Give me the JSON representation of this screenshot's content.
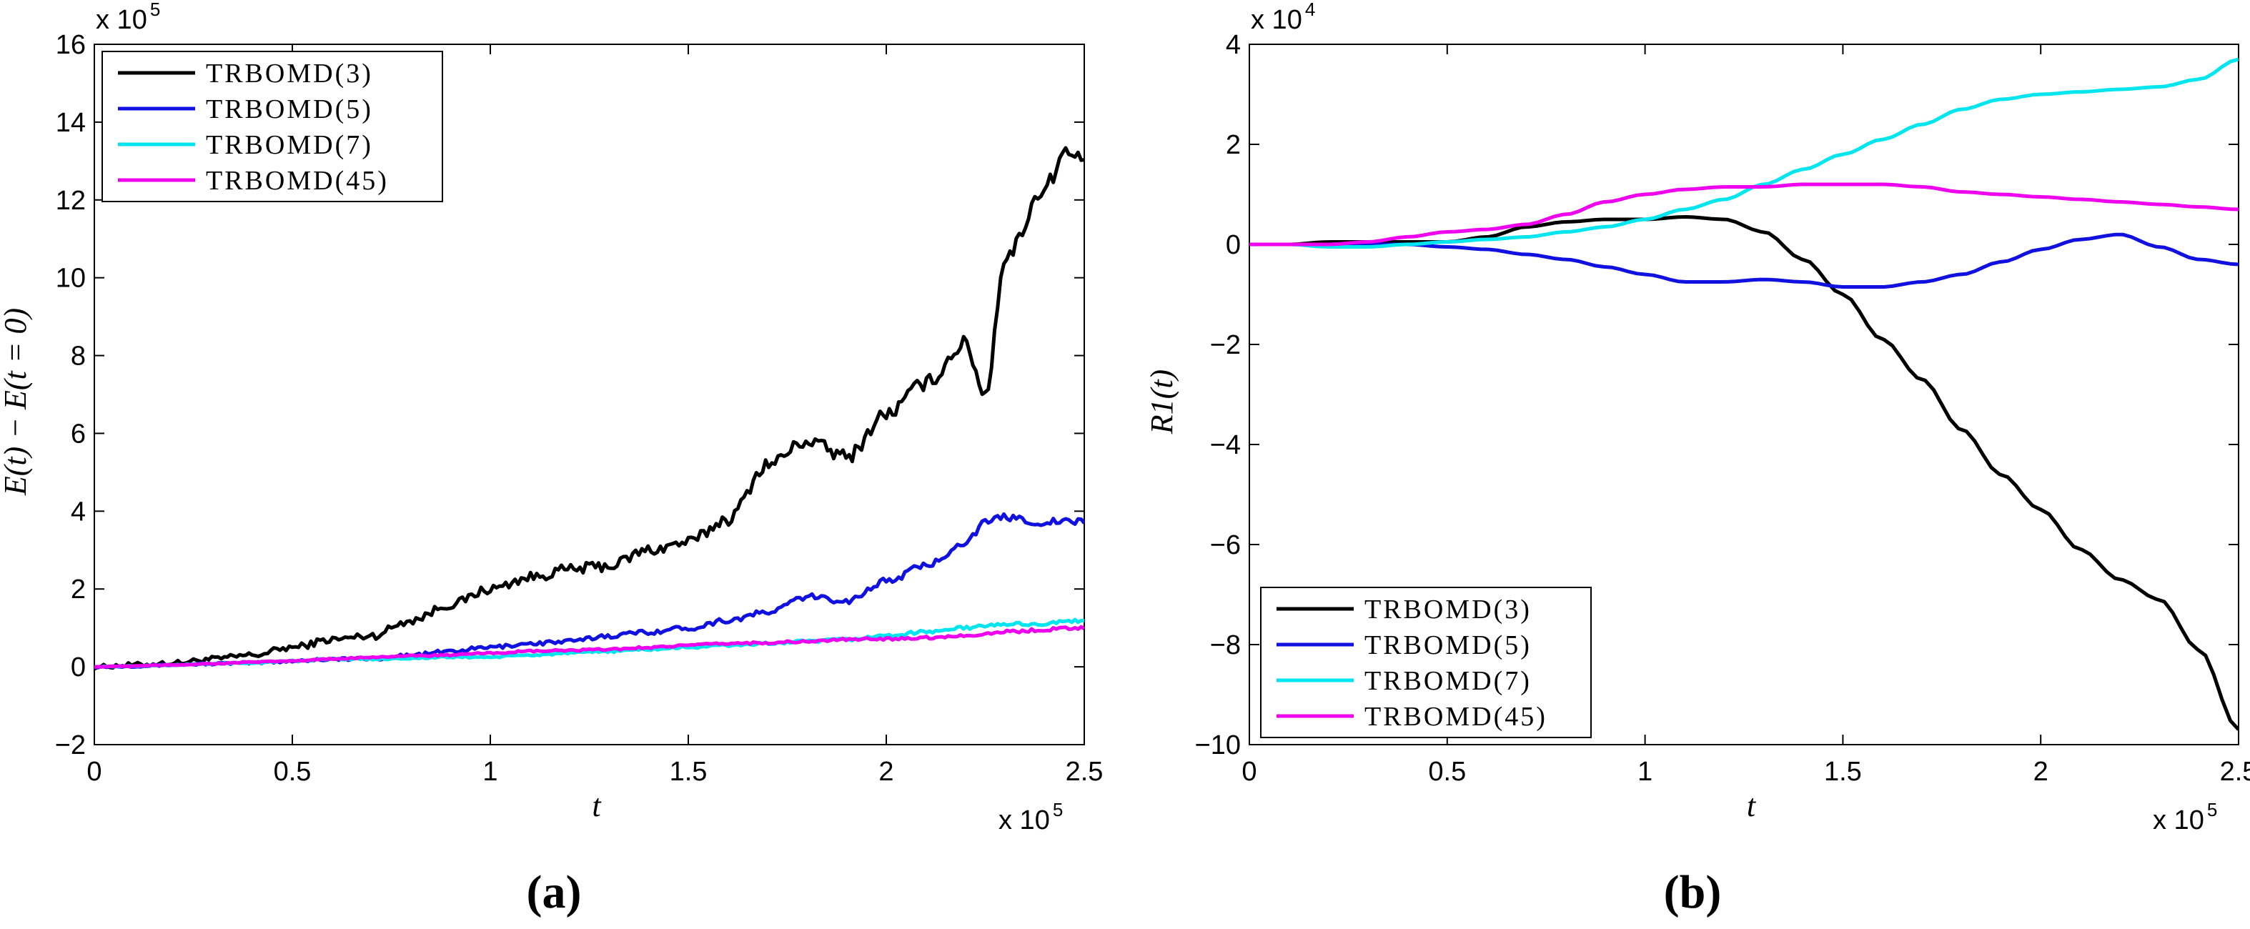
{
  "chart_data": [
    {
      "type": "line",
      "panel_label": "(a)",
      "ylabel": "E(t) − E(t = 0)",
      "xlabel": "t",
      "x_multiplier": {
        "base": "x 10",
        "exp": "5"
      },
      "y_multiplier": {
        "base": "x 10",
        "exp": "5"
      },
      "xlim": [
        0,
        2.5
      ],
      "ylim": [
        -2,
        16
      ],
      "xticks": [
        0,
        0.5,
        1,
        1.5,
        2,
        2.5
      ],
      "xtick_labels": [
        "0",
        "0.5",
        "1",
        "1.5",
        "2",
        "2.5"
      ],
      "yticks": [
        -2,
        0,
        2,
        4,
        6,
        8,
        10,
        12,
        14,
        16
      ],
      "ytick_labels": [
        "−2",
        "0",
        "2",
        "4",
        "6",
        "8",
        "10",
        "12",
        "14",
        "16"
      ],
      "legend_position": "top-left",
      "x": [
        0,
        0.1,
        0.2,
        0.3,
        0.4,
        0.5,
        0.6,
        0.7,
        0.8,
        0.9,
        1.0,
        1.1,
        1.2,
        1.3,
        1.4,
        1.5,
        1.6,
        1.7,
        1.8,
        1.9,
        2.0,
        2.1,
        2.2,
        2.25,
        2.3,
        2.4,
        2.45,
        2.5
      ],
      "series": [
        {
          "name": "TRBOMD(3)",
          "color": "#000000",
          "noise": 0.35,
          "values": [
            0,
            0.05,
            0.1,
            0.2,
            0.3,
            0.5,
            0.7,
            0.8,
            1.2,
            1.6,
            2.0,
            2.3,
            2.5,
            2.6,
            3.0,
            3.2,
            3.8,
            5.2,
            5.8,
            5.4,
            6.5,
            7.3,
            8.3,
            7.0,
            10.5,
            12.3,
            13.2,
            13.0
          ]
        },
        {
          "name": "TRBOMD(5)",
          "color": "#1010e0",
          "noise": 0.15,
          "values": [
            0,
            0.02,
            0.05,
            0.08,
            0.1,
            0.15,
            0.2,
            0.2,
            0.3,
            0.4,
            0.5,
            0.6,
            0.65,
            0.8,
            0.9,
            1.0,
            1.2,
            1.4,
            1.8,
            1.7,
            2.2,
            2.6,
            3.2,
            3.7,
            3.85,
            3.7,
            3.75,
            3.7
          ]
        },
        {
          "name": "TRBOMD(7)",
          "color": "#00e5ee",
          "noise": 0.07,
          "values": [
            0,
            0.02,
            0.05,
            0.08,
            0.1,
            0.15,
            0.2,
            0.2,
            0.22,
            0.25,
            0.25,
            0.3,
            0.35,
            0.4,
            0.45,
            0.5,
            0.55,
            0.6,
            0.65,
            0.7,
            0.8,
            0.9,
            1.0,
            1.05,
            1.1,
            1.1,
            1.15,
            1.2
          ]
        },
        {
          "name": "TRBOMD(45)",
          "color": "#ee00ee",
          "noise": 0.06,
          "values": [
            0,
            0.02,
            0.05,
            0.08,
            0.12,
            0.15,
            0.2,
            0.25,
            0.28,
            0.3,
            0.35,
            0.4,
            0.42,
            0.45,
            0.5,
            0.55,
            0.6,
            0.62,
            0.65,
            0.7,
            0.72,
            0.75,
            0.8,
            0.85,
            0.9,
            0.95,
            1.0,
            1.0
          ]
        }
      ]
    },
    {
      "type": "line",
      "panel_label": "(b)",
      "ylabel": "R1(t)",
      "xlabel": "t",
      "x_multiplier": {
        "base": "x 10",
        "exp": "5"
      },
      "y_multiplier": {
        "base": "x 10",
        "exp": "4"
      },
      "xlim": [
        0,
        2.5
      ],
      "ylim": [
        -10,
        4
      ],
      "xticks": [
        0,
        0.5,
        1,
        1.5,
        2,
        2.5
      ],
      "xtick_labels": [
        "0",
        "0.5",
        "1",
        "1.5",
        "2",
        "2.5"
      ],
      "yticks": [
        -10,
        -8,
        -6,
        -4,
        -2,
        0,
        2,
        4
      ],
      "ytick_labels": [
        "−10",
        "−8",
        "−6",
        "−4",
        "−2",
        "0",
        "2",
        "4"
      ],
      "legend_position": "bottom-left",
      "x": [
        0,
        0.1,
        0.2,
        0.3,
        0.4,
        0.5,
        0.6,
        0.7,
        0.8,
        0.9,
        1.0,
        1.1,
        1.2,
        1.3,
        1.4,
        1.5,
        1.6,
        1.7,
        1.8,
        1.9,
        2.0,
        2.1,
        2.2,
        2.3,
        2.4,
        2.5
      ],
      "series": [
        {
          "name": "TRBOMD(3)",
          "color": "#000000",
          "noise": 0,
          "values": [
            0,
            0,
            0.05,
            0.05,
            0.05,
            0.05,
            0.15,
            0.35,
            0.45,
            0.5,
            0.5,
            0.55,
            0.5,
            0.25,
            -0.3,
            -1.0,
            -1.9,
            -2.7,
            -3.7,
            -4.6,
            -5.3,
            -6.1,
            -6.7,
            -7.1,
            -8.1,
            -9.7
          ]
        },
        {
          "name": "TRBOMD(5)",
          "color": "#1010e0",
          "noise": 0,
          "values": [
            0,
            0,
            0,
            0,
            0,
            -0.05,
            -0.1,
            -0.2,
            -0.3,
            -0.45,
            -0.6,
            -0.75,
            -0.75,
            -0.7,
            -0.75,
            -0.85,
            -0.85,
            -0.75,
            -0.6,
            -0.35,
            -0.1,
            0.1,
            0.2,
            -0.05,
            -0.3,
            -0.4
          ]
        },
        {
          "name": "TRBOMD(7)",
          "color": "#00e5ee",
          "noise": 0,
          "values": [
            0,
            0,
            -0.05,
            -0.05,
            0,
            0.05,
            0.1,
            0.15,
            0.25,
            0.35,
            0.5,
            0.7,
            0.9,
            1.2,
            1.5,
            1.8,
            2.1,
            2.4,
            2.7,
            2.9,
            3.0,
            3.05,
            3.1,
            3.15,
            3.3,
            3.7
          ]
        },
        {
          "name": "TRBOMD(45)",
          "color": "#ee00ee",
          "noise": 0,
          "values": [
            0,
            0,
            0,
            0.05,
            0.15,
            0.25,
            0.3,
            0.4,
            0.6,
            0.85,
            1.0,
            1.1,
            1.15,
            1.15,
            1.2,
            1.2,
            1.2,
            1.15,
            1.05,
            1.0,
            0.95,
            0.9,
            0.85,
            0.8,
            0.75,
            0.7
          ]
        }
      ]
    }
  ]
}
